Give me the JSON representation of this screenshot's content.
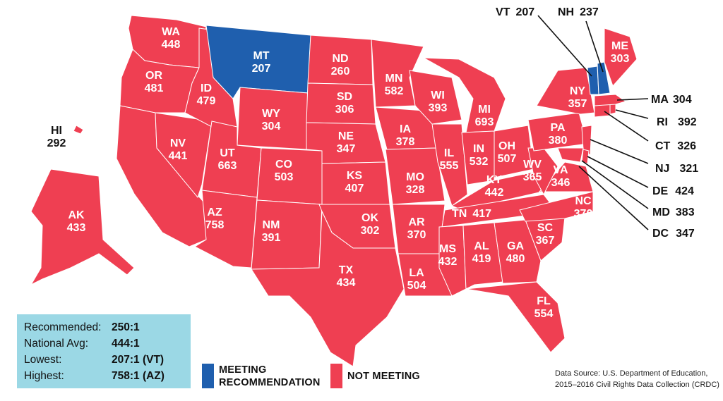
{
  "colors": {
    "not_meeting": "#ef3f52",
    "meeting": "#1f5fae",
    "stats_box": "#9bd8e5"
  },
  "states": {
    "WA": "448",
    "OR": "481",
    "ID": "479",
    "MT": "207",
    "ND": "260",
    "SD": "306",
    "MN": "582",
    "WI": "393",
    "MI": "693",
    "WY": "304",
    "NE": "347",
    "IA": "378",
    "NV": "441",
    "UT": "663",
    "CO": "503",
    "KS": "407",
    "MO": "328",
    "IL": "555",
    "IN": "532",
    "OH": "507",
    "WV": "365",
    "VA": "346",
    "KY": "442",
    "PA": "380",
    "NY": "357",
    "ME": "303",
    "AZ": "758",
    "NM": "391",
    "OK": "302",
    "AR": "370",
    "TN": "417",
    "NC": "370",
    "SC": "367",
    "GA": "480",
    "AL": "419",
    "MS": "432",
    "LA": "504",
    "TX": "434",
    "FL": "554",
    "AK": "433",
    "HI": "292",
    "VT": "207",
    "NH": "237",
    "MA": "304",
    "RI": "392",
    "CT": "326",
    "NJ": "321",
    "DE": "424",
    "MD": "383",
    "DC": "347"
  },
  "meeting_states": [
    "MT",
    "VT",
    "NH"
  ],
  "stats": {
    "recommended_label": "Recommended:",
    "recommended_value": "250:1",
    "national_label": "National Avg:",
    "national_value": "444:1",
    "lowest_label": "Lowest:",
    "lowest_value": "207:1 (VT)",
    "highest_label": "Highest:",
    "highest_value": "758:1 (AZ)"
  },
  "legend": {
    "meeting": "MEETING\nRECOMMENDATION",
    "not_meeting": "NOT MEETING"
  },
  "source": "Data Source: U.S. Department of Education,\n2015–2016 Civil Rights Data Collection (CRDC)"
}
